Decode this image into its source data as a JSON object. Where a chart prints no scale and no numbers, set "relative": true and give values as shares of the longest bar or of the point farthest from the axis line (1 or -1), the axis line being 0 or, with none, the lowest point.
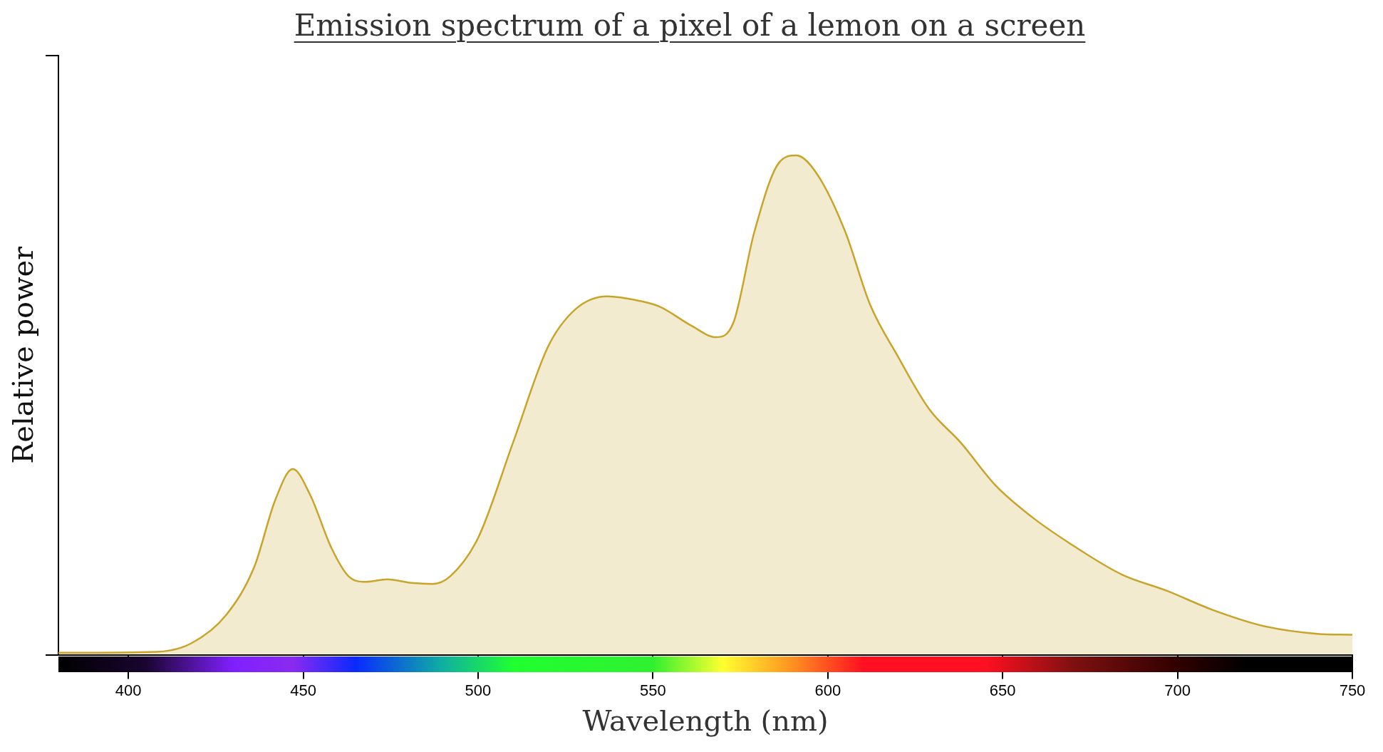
{
  "chart_data": {
    "type": "area",
    "title": "Emission spectrum of a pixel of a lemon on a screen",
    "xlabel": "Wavelength (nm)",
    "ylabel": "Relative power",
    "relative": true,
    "xlim": [
      380,
      750
    ],
    "xticks": [
      400,
      450,
      500,
      550,
      600,
      650,
      700,
      750
    ],
    "grid": false,
    "legend": false,
    "series": [
      {
        "color": "#c8a52a",
        "x": [
          380,
          408,
          418,
          428,
          436,
          442,
          447,
          452,
          458,
          463,
          468,
          474,
          481,
          487,
          492,
          500,
          510,
          520,
          528,
          537,
          546,
          552,
          561,
          568,
          573,
          579,
          586,
          591,
          597,
          605,
          612,
          620,
          629,
          638,
          648,
          658,
          669,
          684,
          697,
          710,
          725,
          740,
          750
        ],
        "values": [
          0.004,
          0.006,
          0.023,
          0.08,
          0.176,
          0.31,
          0.372,
          0.32,
          0.215,
          0.157,
          0.146,
          0.151,
          0.144,
          0.142,
          0.157,
          0.234,
          0.425,
          0.617,
          0.693,
          0.718,
          0.709,
          0.697,
          0.659,
          0.636,
          0.665,
          0.847,
          0.985,
          1,
          0.962,
          0.847,
          0.703,
          0.598,
          0.492,
          0.425,
          0.339,
          0.278,
          0.224,
          0.161,
          0.128,
          0.09,
          0.057,
          0.042,
          0.04
        ]
      }
    ]
  }
}
